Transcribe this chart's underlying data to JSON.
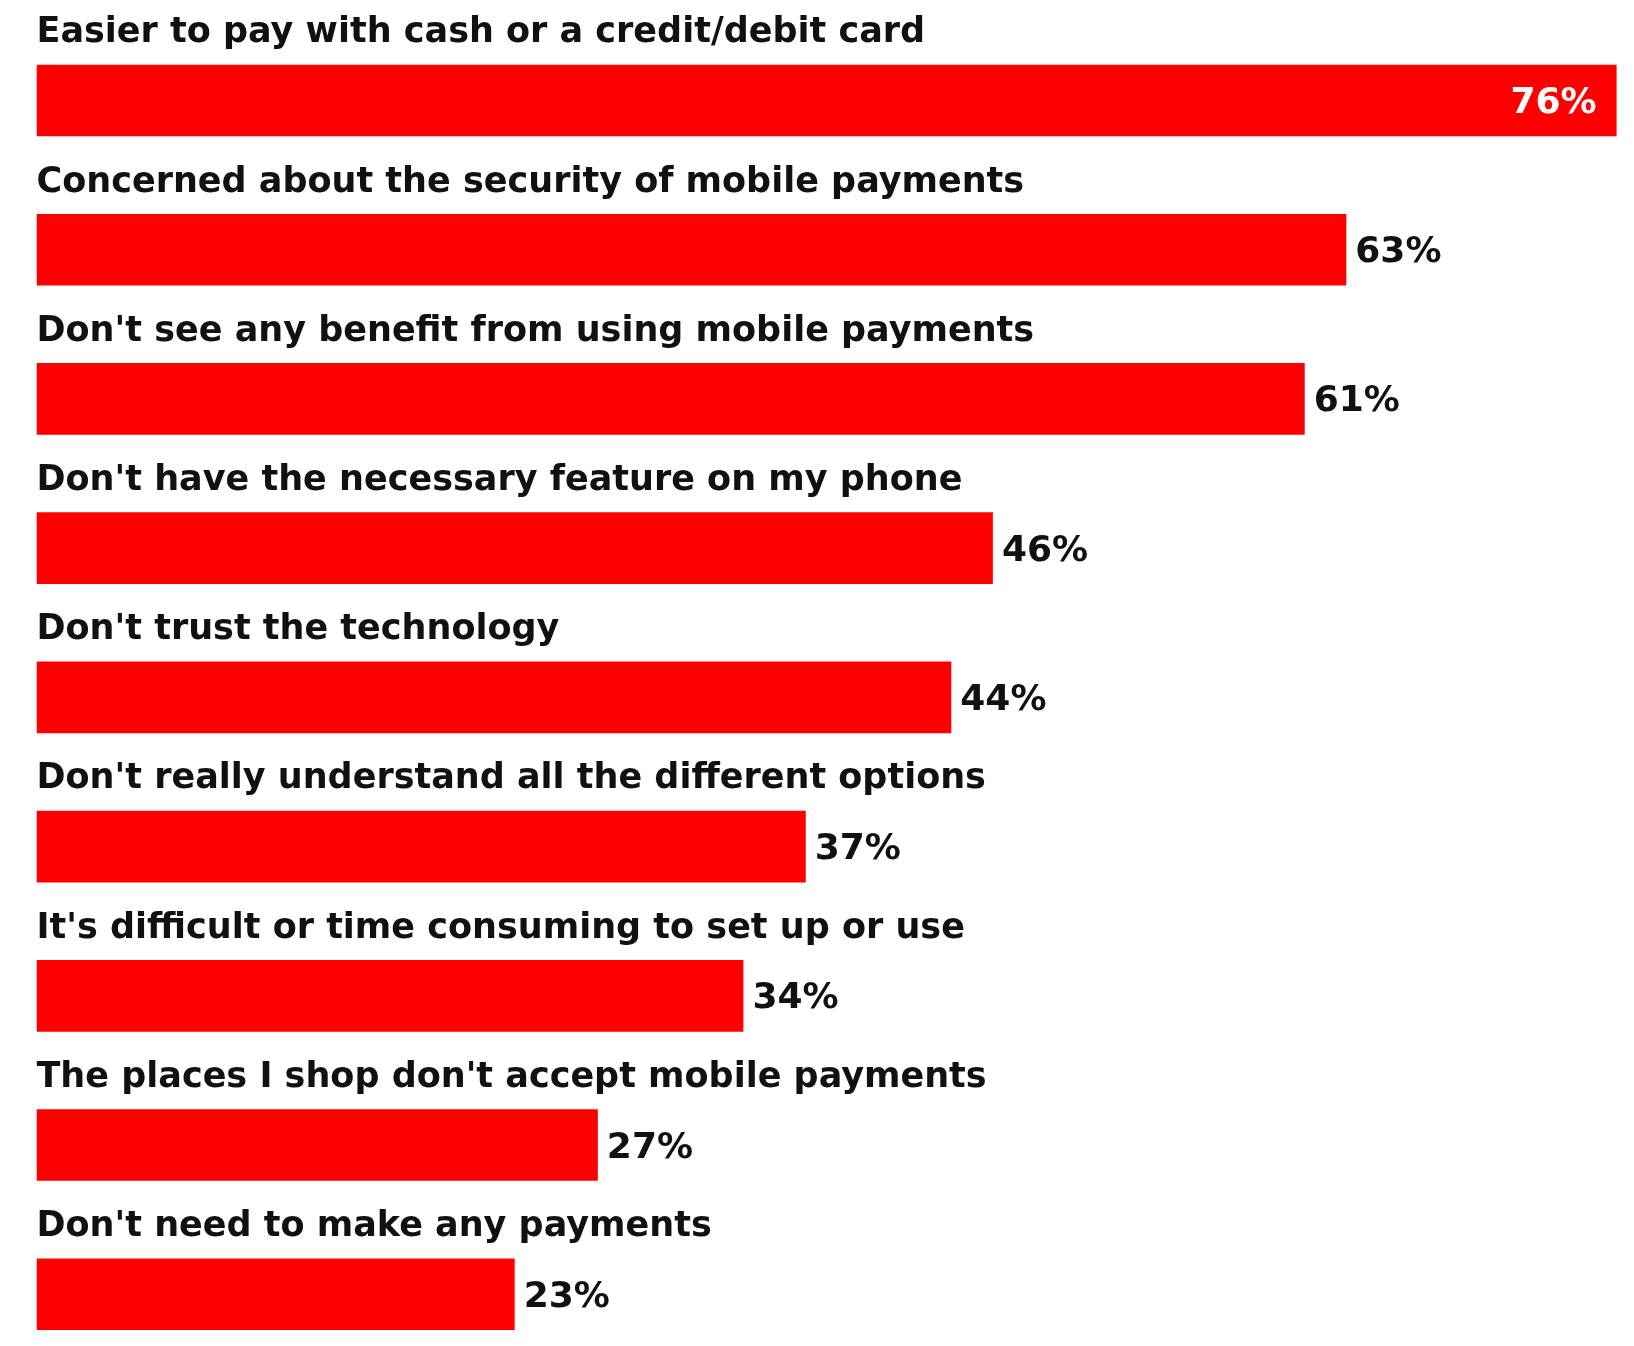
{
  "chart_data": {
    "type": "bar",
    "orientation": "horizontal",
    "color": "#ff0000",
    "categories": [
      "Easier to pay with cash or a credit/debit card",
      "Concerned about the security of mobile payments",
      "Don't see any benefit from using mobile payments",
      "Don't have the necessary feature on my phone",
      "Don't trust the technology",
      "Don't really understand all the different options",
      "It's difficult or time consuming to set up or use",
      "The places I shop don't accept mobile payments",
      "Don't need to make any payments"
    ],
    "values": [
      76,
      63,
      61,
      46,
      44,
      37,
      34,
      27,
      23
    ],
    "value_labels": [
      "76%",
      "63%",
      "61%",
      "46%",
      "44%",
      "37%",
      "34%",
      "27%",
      "23%"
    ]
  }
}
